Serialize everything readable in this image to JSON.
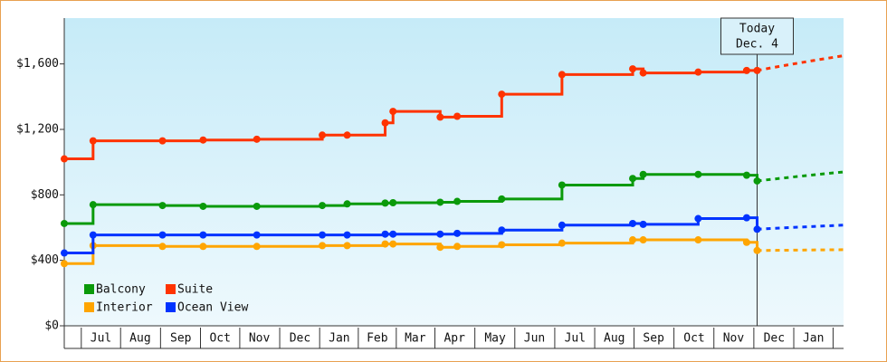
{
  "chart_data": {
    "type": "step-line",
    "x": [
      0,
      22,
      75,
      106,
      147,
      197,
      216,
      245,
      251,
      287,
      300,
      334,
      380,
      434,
      442,
      484,
      521,
      529
    ],
    "xlim": [
      0,
      595
    ],
    "xticks": [
      {
        "value": 28,
        "label": "Jul"
      },
      {
        "value": 58,
        "label": "Aug"
      },
      {
        "value": 89,
        "label": "Sep"
      },
      {
        "value": 119,
        "label": "Oct"
      },
      {
        "value": 149,
        "label": "Nov"
      },
      {
        "value": 180,
        "label": "Dec"
      },
      {
        "value": 210,
        "label": "Jan"
      },
      {
        "value": 239,
        "label": "Feb"
      },
      {
        "value": 268,
        "label": "Mar"
      },
      {
        "value": 298,
        "label": "Apr"
      },
      {
        "value": 329,
        "label": "May"
      },
      {
        "value": 359,
        "label": "Jun"
      },
      {
        "value": 390,
        "label": "Jul"
      },
      {
        "value": 420,
        "label": "Aug"
      },
      {
        "value": 450,
        "label": "Sep"
      },
      {
        "value": 481,
        "label": "Oct"
      },
      {
        "value": 511,
        "label": "Nov"
      },
      {
        "value": 542,
        "label": "Dec"
      },
      {
        "value": 572,
        "label": "Jan"
      }
    ],
    "ylim": [
      0,
      1880
    ],
    "yticks": [
      {
        "value": 0,
        "label": "$0"
      },
      {
        "value": 400,
        "label": "$400"
      },
      {
        "value": 800,
        "label": "$800"
      },
      {
        "value": 1200,
        "label": "$1,200"
      },
      {
        "value": 1600,
        "label": "$1,600"
      }
    ],
    "forecast_x": [
      529,
      595
    ],
    "annotation": {
      "x": 529,
      "lines": [
        "Today",
        "Dec. 4"
      ]
    },
    "series": [
      {
        "name": "Balcony",
        "color": "#0a9a0a",
        "values": [
          625,
          740,
          735,
          730,
          730,
          735,
          745,
          750,
          752,
          755,
          760,
          775,
          860,
          900,
          925,
          925,
          920,
          885
        ],
        "forecast": [
          885,
          940
        ]
      },
      {
        "name": "Suite",
        "color": "#ff3300",
        "values": [
          1020,
          1130,
          1130,
          1135,
          1140,
          1165,
          1165,
          1240,
          1310,
          1275,
          1280,
          1415,
          1535,
          1570,
          1545,
          1550,
          1560,
          1560
        ],
        "forecast": [
          1560,
          1650
        ]
      },
      {
        "name": "Interior",
        "color": "#ffa500",
        "values": [
          380,
          490,
          485,
          485,
          485,
          490,
          490,
          500,
          500,
          480,
          485,
          495,
          505,
          525,
          525,
          525,
          510,
          460
        ],
        "forecast": [
          460,
          465
        ]
      },
      {
        "name": "Ocean View",
        "color": "#0033ff",
        "values": [
          445,
          555,
          555,
          555,
          555,
          555,
          555,
          560,
          560,
          560,
          565,
          585,
          615,
          625,
          620,
          655,
          660,
          590
        ],
        "forecast": [
          590,
          615
        ]
      }
    ]
  }
}
